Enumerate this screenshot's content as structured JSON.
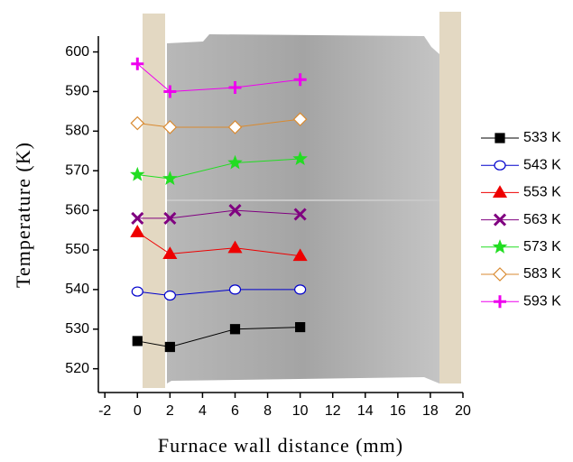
{
  "chart_data": {
    "type": "line",
    "x_label": "Furnace wall distance (mm)",
    "y_label": "Temperature (K)",
    "x": [
      0,
      2,
      6,
      10
    ],
    "series": [
      {
        "name": "533 K",
        "color": "#000000",
        "marker": "square",
        "values": [
          527,
          525.5,
          530,
          530.5
        ]
      },
      {
        "name": "543 K",
        "color": "#0000cc",
        "marker": "circle",
        "values": [
          539.5,
          538.5,
          540,
          540
        ]
      },
      {
        "name": "553 K",
        "color": "#ee0000",
        "marker": "triangle",
        "values": [
          554.5,
          549,
          550.5,
          548.5
        ]
      },
      {
        "name": "563 K",
        "color": "#800080",
        "marker": "x",
        "values": [
          558,
          558,
          560,
          559
        ]
      },
      {
        "name": "573 K",
        "color": "#22dd22",
        "marker": "star",
        "values": [
          569,
          568,
          572,
          573
        ]
      },
      {
        "name": "583 K",
        "color": "#d98a30",
        "marker": "diamond",
        "values": [
          582,
          581,
          581,
          583
        ]
      },
      {
        "name": "593 K",
        "color": "#ee00ee",
        "marker": "plus",
        "values": [
          597,
          590,
          591,
          593
        ]
      }
    ],
    "xlim": [
      -2.4,
      20
    ],
    "xticks": [
      -2,
      0,
      2,
      4,
      6,
      8,
      10,
      12,
      14,
      16,
      18,
      20
    ],
    "ylim": [
      514,
      604
    ],
    "yticks": [
      520,
      530,
      540,
      550,
      560,
      570,
      580,
      590,
      600
    ]
  }
}
